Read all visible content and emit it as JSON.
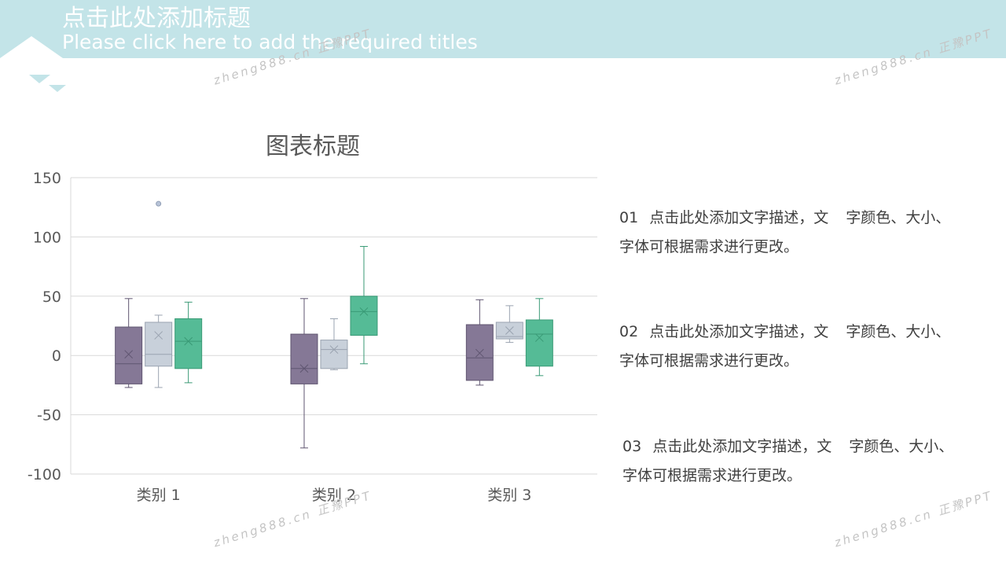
{
  "header": {
    "title": "点击此处添加标题",
    "subtitle": "Please click here to add the required titles"
  },
  "watermarks": [
    "zheng888.cn 正豫PPT",
    "zheng888.cn 正豫PPT",
    "zheng888.cn 正豫PPT",
    "zheng888.cn 正豫PPT"
  ],
  "colors": {
    "header_band": "#c3e4e8",
    "series_1": "#857896",
    "series_2": "#c8d0da",
    "series_3": "#55bb96"
  },
  "chart_data": {
    "type": "box",
    "title": "图表标题",
    "categories": [
      "类别 1",
      "类别 2",
      "类别 3"
    ],
    "ylim": [
      -100,
      150
    ],
    "yticks": [
      150,
      100,
      50,
      0,
      -50,
      -100
    ],
    "grid": true,
    "series": [
      {
        "color": "#857896",
        "boxes": [
          {
            "min": -27,
            "q1": -24,
            "median": -7,
            "q3": 24,
            "max": 48,
            "mean": 1,
            "outliers": []
          },
          {
            "min": -78,
            "q1": -24,
            "median": -11,
            "q3": 18,
            "max": 48,
            "mean": -11,
            "outliers": []
          },
          {
            "min": -25,
            "q1": -21,
            "median": -2,
            "q3": 26,
            "max": 47,
            "mean": 2,
            "outliers": []
          }
        ]
      },
      {
        "color": "#c8d0da",
        "boxes": [
          {
            "min": -27,
            "q1": -9,
            "median": 1,
            "q3": 28,
            "max": 34,
            "mean": 17,
            "outliers": [
              128
            ]
          },
          {
            "min": -12,
            "q1": -11,
            "median": 5,
            "q3": 13,
            "max": 31,
            "mean": 5,
            "outliers": []
          },
          {
            "min": 11,
            "q1": 14,
            "median": 16,
            "q3": 28,
            "max": 42,
            "mean": 21,
            "outliers": []
          }
        ]
      },
      {
        "color": "#55bb96",
        "boxes": [
          {
            "min": -23,
            "q1": -11,
            "median": 12,
            "q3": 31,
            "max": 45,
            "mean": 12,
            "outliers": []
          },
          {
            "min": -7,
            "q1": 17,
            "median": 37,
            "q3": 50,
            "max": 92,
            "mean": 37,
            "outliers": []
          },
          {
            "min": -17,
            "q1": -9,
            "median": 18,
            "q3": 30,
            "max": 48,
            "mean": 15,
            "outliers": []
          }
        ]
      }
    ]
  },
  "descriptions": [
    {
      "num": "01",
      "text_a": "点击此处添加文字描述，文",
      "text_b": "字颜色、大小、",
      "text_c": "字体可根据需求进行更改。"
    },
    {
      "num": "02",
      "text_a": "点击此处添加文字描述，文",
      "text_b": "字颜色、大小、",
      "text_c": "字体可根据需求进行更改。"
    },
    {
      "num": "03",
      "text_a": "点击此处添加文字描述，文",
      "text_b": "字颜色、大小、",
      "text_c": "字体可根据需求进行更改。"
    }
  ]
}
